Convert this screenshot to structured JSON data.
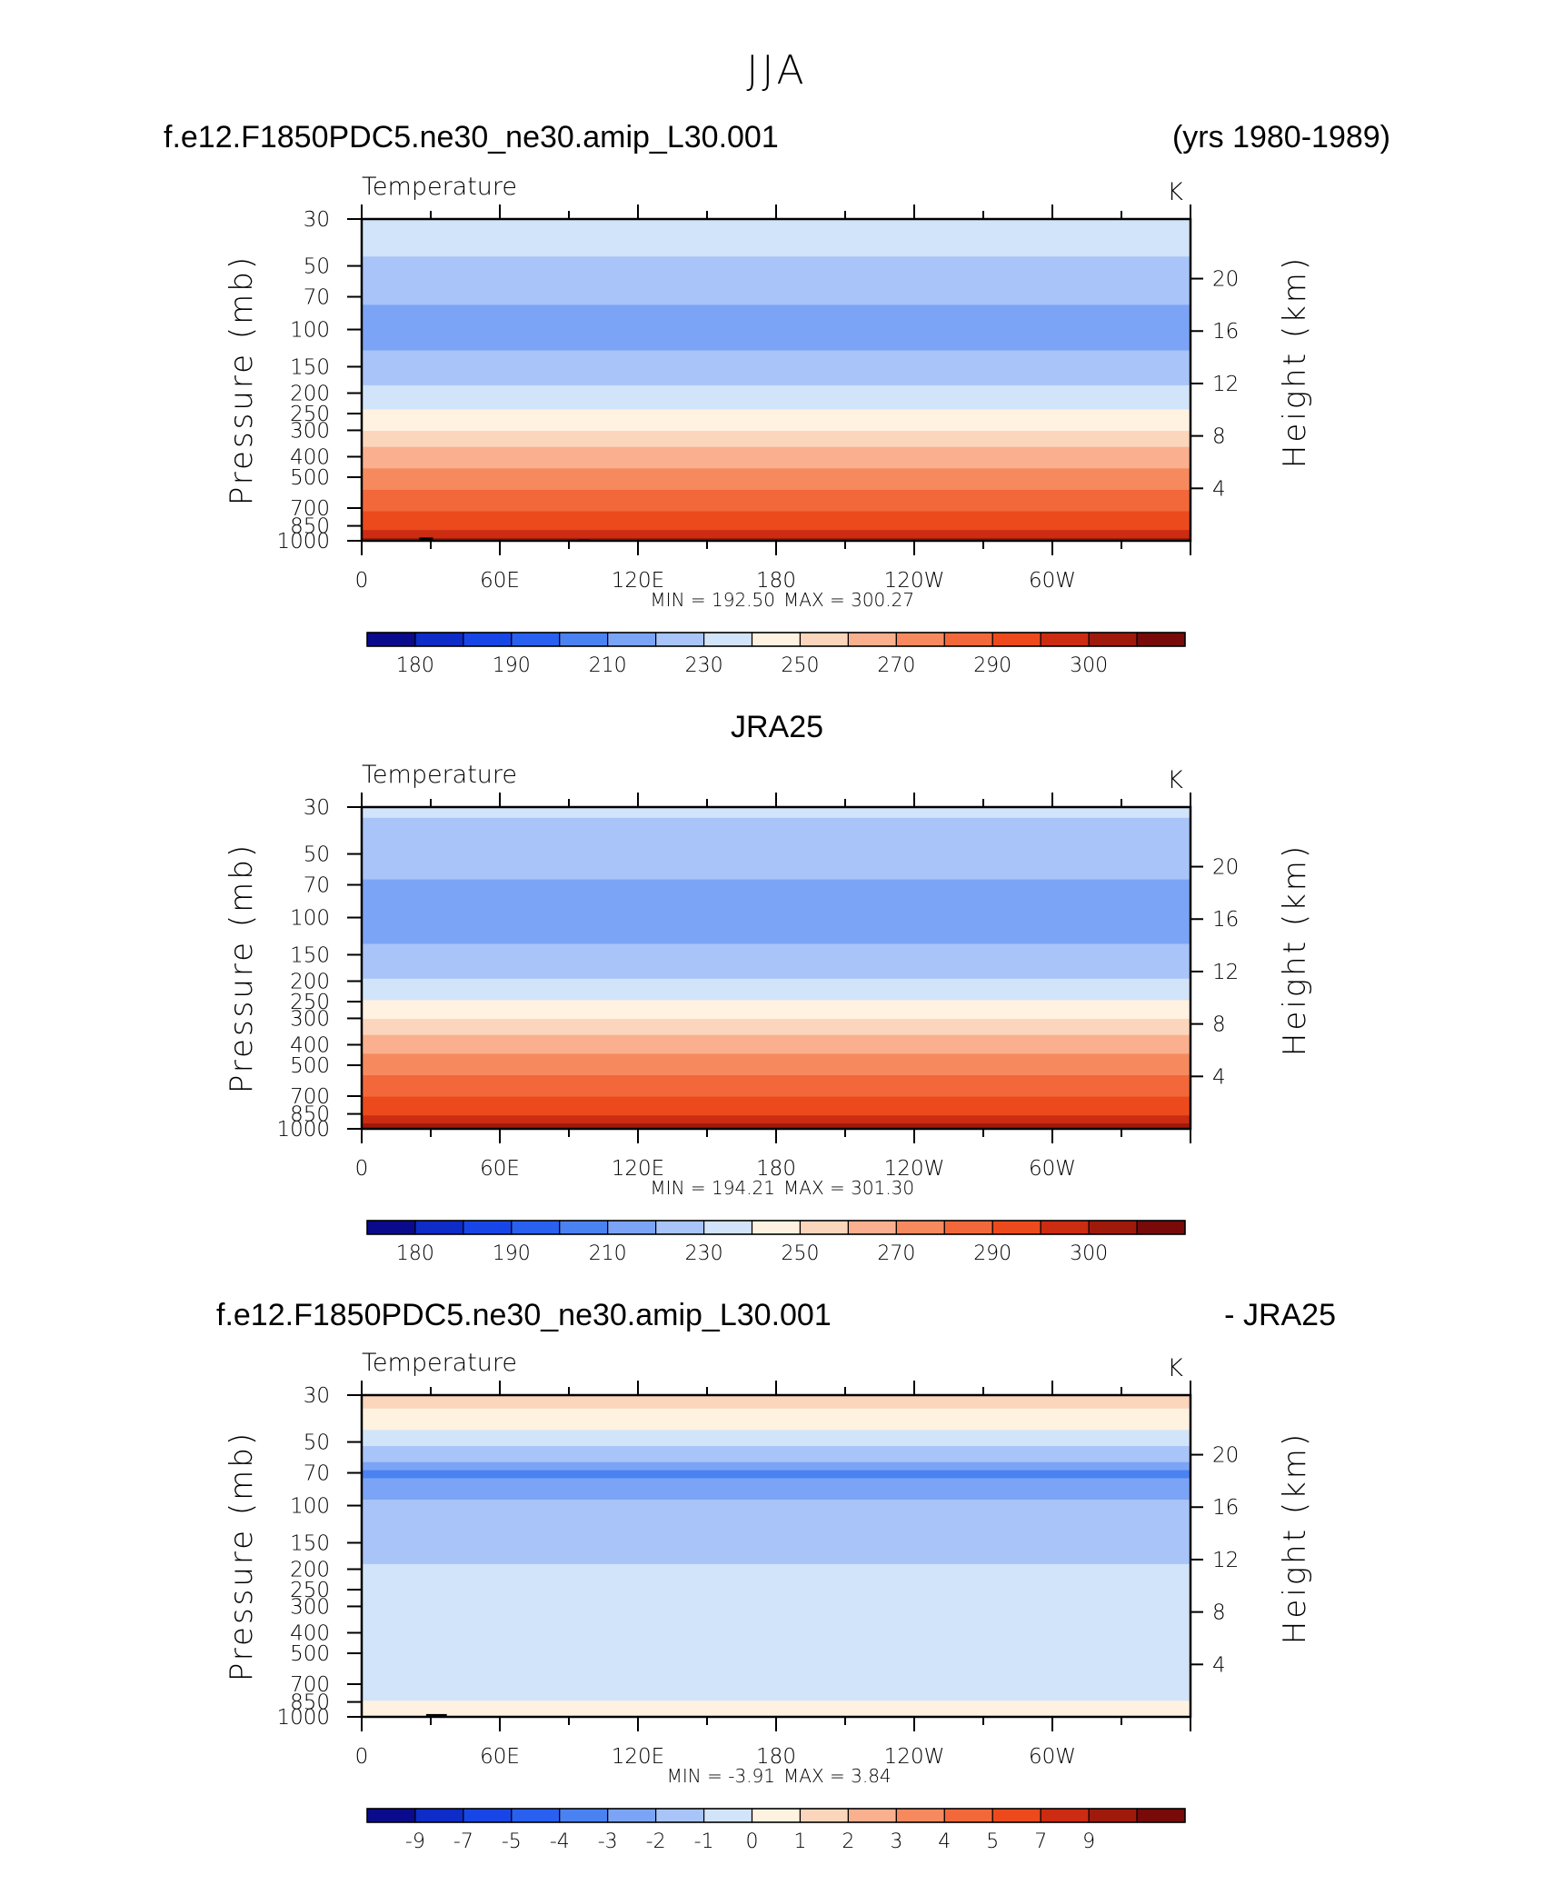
{
  "figure": {
    "title": "JJA",
    "top_left": "f.e12.F1850PDC5.ne30_ne30.amip_L30.001",
    "top_right": "(yrs 1980-1989)",
    "middle_title": "JRA25",
    "bottom_left": "f.e12.F1850PDC5.ne30_ne30.amip_L30.001",
    "bottom_right": "- JRA25"
  },
  "colors": {
    "temp_scale": [
      "#0a0a8c",
      "#0d2cc8",
      "#1846e6",
      "#2a60f0",
      "#4a82f2",
      "#7ca4f6",
      "#a8c4f8",
      "#d2e4fa",
      "#fff2e0",
      "#fcd6bc",
      "#fab08e",
      "#f68a5e",
      "#f2683a",
      "#ec4a1c",
      "#cc2c12",
      "#a01a0c",
      "#780a0a"
    ],
    "diff_scale": [
      "#0a0a8c",
      "#0d2cc8",
      "#1846e6",
      "#2a60f0",
      "#4a82f2",
      "#7ca4f6",
      "#a8c4f8",
      "#d2e4fa",
      "#fff2e0",
      "#fcd6bc",
      "#fab08e",
      "#f68a5e",
      "#f2683a",
      "#ec4a1c",
      "#cc2c12",
      "#a01a0c",
      "#780a0a"
    ],
    "topography": "#000000"
  },
  "chart_data": [
    {
      "type": "heatmap",
      "title": "Temperature",
      "units": "K",
      "ylabel": "Pressure (mb)",
      "y2label": "Height (km)",
      "xlabel": "",
      "x_ticks": [
        "0",
        "60E",
        "120E",
        "180",
        "120W",
        "60W"
      ],
      "x_range_deg": [
        0,
        360
      ],
      "y_ticks_pressure": [
        30,
        50,
        70,
        100,
        150,
        200,
        250,
        300,
        400,
        500,
        700,
        850,
        1000
      ],
      "y_range_pressure": [
        1000,
        30
      ],
      "y2_ticks_km": [
        4,
        8,
        12,
        16,
        20
      ],
      "min_label": "MIN = 192.50",
      "max_label": "MAX = 300.27",
      "min": 192.5,
      "max": 300.27,
      "colorbar_labels": [
        "180",
        "190",
        "210",
        "230",
        "250",
        "270",
        "290",
        "300"
      ],
      "colorbar_levels": [
        175,
        180,
        185,
        190,
        200,
        210,
        220,
        230,
        240,
        250,
        260,
        270,
        280,
        290,
        295,
        300
      ],
      "profile_pressure": [
        30,
        50,
        70,
        100,
        150,
        200,
        250,
        300,
        400,
        500,
        700,
        850,
        1000
      ],
      "profile_temperature": [
        228,
        218,
        212,
        205,
        214,
        222,
        232,
        240,
        255,
        264,
        278,
        288,
        296
      ],
      "topography_blocks": [
        [
          10,
          25,
          990
        ],
        [
          25,
          31,
          965
        ],
        [
          34,
          41,
          990
        ],
        [
          94,
          99,
          985
        ],
        [
          141,
          144,
          990
        ],
        [
          292,
          323,
          990
        ]
      ]
    },
    {
      "type": "heatmap",
      "title": "Temperature",
      "units": "K",
      "ylabel": "Pressure (mb)",
      "y2label": "Height (km)",
      "xlabel": "",
      "x_ticks": [
        "0",
        "60E",
        "120E",
        "180",
        "120W",
        "60W"
      ],
      "x_range_deg": [
        0,
        360
      ],
      "y_ticks_pressure": [
        30,
        50,
        70,
        100,
        150,
        200,
        250,
        300,
        400,
        500,
        700,
        850,
        1000
      ],
      "y_range_pressure": [
        1000,
        30
      ],
      "y2_ticks_km": [
        4,
        8,
        12,
        16,
        20
      ],
      "min_label": "MIN = 194.21",
      "max_label": "MAX = 301.30",
      "min": 194.21,
      "max": 301.3,
      "colorbar_labels": [
        "180",
        "190",
        "210",
        "230",
        "250",
        "270",
        "290",
        "300"
      ],
      "colorbar_levels": [
        175,
        180,
        185,
        190,
        200,
        210,
        220,
        230,
        240,
        250,
        260,
        270,
        280,
        290,
        295,
        300
      ],
      "profile_pressure": [
        30,
        50,
        70,
        100,
        150,
        200,
        250,
        300,
        400,
        500,
        700,
        850,
        1000
      ],
      "profile_temperature": [
        222,
        214,
        209,
        203,
        213,
        221,
        231,
        240,
        255,
        265,
        279,
        289,
        298
      ],
      "topography_blocks": []
    },
    {
      "type": "heatmap",
      "title": "Temperature",
      "units": "K",
      "ylabel": "Pressure (mb)",
      "y2label": "Height (km)",
      "xlabel": "",
      "x_ticks": [
        "0",
        "60E",
        "120E",
        "180",
        "120W",
        "60W"
      ],
      "x_range_deg": [
        0,
        360
      ],
      "y_ticks_pressure": [
        30,
        50,
        70,
        100,
        150,
        200,
        250,
        300,
        400,
        500,
        700,
        850,
        1000
      ],
      "y_range_pressure": [
        1000,
        30
      ],
      "y2_ticks_km": [
        4,
        8,
        12,
        16,
        20
      ],
      "min_label": "MIN = -3.91",
      "max_label": "MAX = 3.84",
      "min": -3.91,
      "max": 3.84,
      "colorbar_labels": [
        "-9",
        "-7",
        "-5",
        "-4",
        "-3",
        "-2",
        "-1",
        "0",
        "1",
        "2",
        "3",
        "4",
        "5",
        "7",
        "9"
      ],
      "colorbar_levels": [
        -9,
        -7,
        -5,
        -4,
        -3,
        -2,
        -1,
        0,
        1,
        2,
        3,
        4,
        5,
        7,
        9
      ],
      "profile_pressure": [
        30,
        40,
        50,
        60,
        70,
        100,
        150,
        300,
        500,
        700,
        950,
        1000
      ],
      "profile_difference": [
        1.5,
        0.6,
        -0.8,
        -1.5,
        -3.2,
        -1.8,
        -1.2,
        -0.6,
        -0.8,
        -0.5,
        0.4,
        0.2
      ],
      "topography_blocks": [
        [
          10,
          28,
          990
        ],
        [
          28,
          37,
          970
        ],
        [
          37,
          43,
          990
        ],
        [
          101,
          105,
          990
        ],
        [
          281,
          311,
          990
        ]
      ]
    }
  ]
}
